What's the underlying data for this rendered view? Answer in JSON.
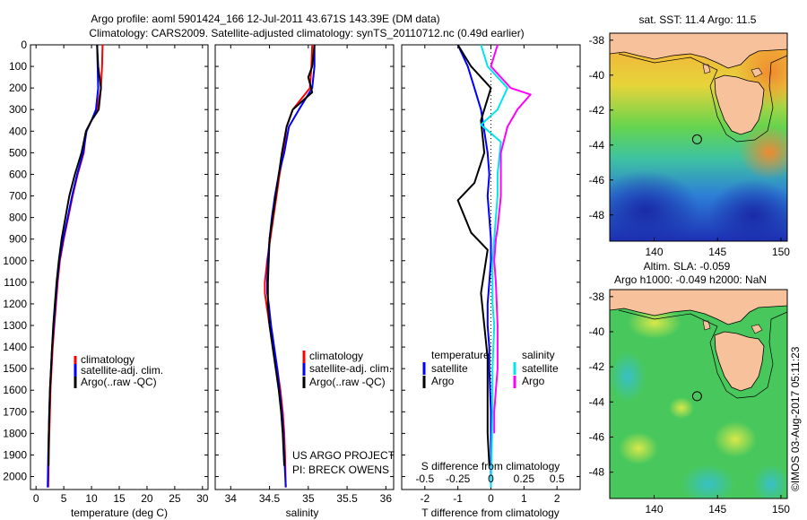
{
  "header": {
    "title_line1": "Argo profile: aoml 5901424_166 12-Jul-2011 43.671S 143.39E (DM data)",
    "title_line2": "Climatology: CARS2009. Satellite-adjusted climatology: synTS_20110712.nc (0.49d earlier)"
  },
  "credit": "©IMOS 03-Aug-2017 05:11:23",
  "colors": {
    "climatology": "#ff0000",
    "satellite": "#0000ff",
    "argo": "#000000",
    "sal_satellite": "#00e5ee",
    "sal_argo": "#ff00ff",
    "land": "#f7c29b"
  },
  "chart_data": [
    {
      "type": "line",
      "name": "temperature-profile",
      "xlabel": "temperature (deg C)",
      "ylabel": "",
      "xlim": [
        -1,
        31
      ],
      "ylim": [
        0,
        2060
      ],
      "xticks": [
        0,
        5,
        10,
        15,
        20,
        25,
        30
      ],
      "yticks": [
        0,
        100,
        200,
        300,
        400,
        500,
        600,
        700,
        800,
        900,
        1000,
        1100,
        1200,
        1300,
        1400,
        1500,
        1600,
        1700,
        1800,
        1900,
        2000
      ],
      "legend": [
        "climatology",
        "satellite-adj. clim.",
        "Argo(..raw -QC)"
      ],
      "series": [
        {
          "name": "climatology",
          "color": "#ff0000",
          "x": [
            12.0,
            11.9,
            11.7,
            11.0,
            10.0,
            9.0,
            8.6,
            7.5,
            6.6,
            5.8,
            5.0,
            4.3,
            3.9,
            3.6,
            3.3,
            3.0,
            2.8,
            2.6,
            2.5,
            2.4,
            2.3,
            2.2
          ],
          "y": [
            0,
            100,
            200,
            300,
            350,
            400,
            500,
            600,
            700,
            800,
            900,
            1000,
            1100,
            1200,
            1300,
            1400,
            1500,
            1600,
            1700,
            1800,
            1900,
            2050
          ]
        },
        {
          "name": "satellite-adj. clim.",
          "color": "#0000ff",
          "x": [
            11.0,
            11.1,
            11.2,
            10.8,
            10.0,
            9.1,
            8.5,
            7.4,
            6.5,
            5.7,
            4.9,
            4.2,
            3.8,
            3.5,
            3.2,
            2.9,
            2.7,
            2.5,
            2.4,
            2.3,
            2.2,
            2.1
          ],
          "y": [
            0,
            100,
            200,
            300,
            350,
            400,
            500,
            600,
            700,
            800,
            900,
            1000,
            1100,
            1200,
            1300,
            1400,
            1500,
            1600,
            1700,
            1800,
            1900,
            2050
          ]
        },
        {
          "name": "Argo(..raw -QC)",
          "color": "#000000",
          "x": [
            11.0,
            11.2,
            11.7,
            11.3,
            10.0,
            9.0,
            8.2,
            7.0,
            6.0,
            5.3,
            4.6,
            4.1,
            3.7,
            3.4,
            3.1,
            2.9,
            2.7,
            2.5,
            2.4,
            2.3,
            2.25
          ],
          "y": [
            0,
            100,
            200,
            300,
            350,
            400,
            500,
            600,
            700,
            800,
            900,
            1000,
            1100,
            1200,
            1300,
            1400,
            1500,
            1600,
            1700,
            1800,
            1950
          ]
        }
      ]
    },
    {
      "type": "line",
      "name": "salinity-profile",
      "xlabel": "salinity",
      "ylabel": "",
      "xlim": [
        33.8,
        36.1
      ],
      "ylim": [
        0,
        2060
      ],
      "xticks": [
        34,
        34.5,
        35,
        35.5,
        36
      ],
      "legend": [
        "climatology",
        "satellite-adj. clim.",
        "Argo(..raw -QC)"
      ],
      "annotations": [
        "US ARGO PROJECT",
        "PI: BRECK OWENS"
      ],
      "series": [
        {
          "name": "climatology",
          "color": "#ff0000",
          "x": [
            35.05,
            35.04,
            35.02,
            34.8,
            34.72,
            34.68,
            34.63,
            34.59,
            34.55,
            34.51,
            34.47,
            34.44,
            34.44,
            34.46,
            34.5,
            34.55,
            34.6,
            34.64,
            34.67,
            34.69,
            34.7,
            34.71
          ],
          "y": [
            0,
            100,
            200,
            300,
            380,
            500,
            600,
            700,
            800,
            900,
            1000,
            1100,
            1150,
            1200,
            1300,
            1400,
            1500,
            1600,
            1700,
            1800,
            1900,
            2050
          ]
        },
        {
          "name": "satellite-adj. clim.",
          "color": "#0000ff",
          "x": [
            35.08,
            35.08,
            35.05,
            34.88,
            34.75,
            34.69,
            34.62,
            34.57,
            34.53,
            34.5,
            34.48,
            34.47,
            34.47,
            34.49,
            34.52,
            34.56,
            34.6,
            34.63,
            34.66,
            34.68,
            34.69,
            34.71
          ],
          "y": [
            0,
            100,
            200,
            300,
            380,
            500,
            600,
            700,
            800,
            900,
            1000,
            1100,
            1150,
            1200,
            1300,
            1400,
            1500,
            1600,
            1700,
            1800,
            1900,
            2050
          ]
        },
        {
          "name": "Argo(..raw -QC)",
          "color": "#000000",
          "x": [
            35.08,
            35.05,
            35.0,
            35.05,
            34.8,
            34.72,
            34.66,
            34.62,
            34.58,
            34.54,
            34.5,
            34.49,
            34.48,
            34.48,
            34.5,
            34.54,
            34.58,
            34.62,
            34.65,
            34.67,
            34.69
          ],
          "y": [
            0,
            100,
            150,
            220,
            300,
            380,
            500,
            600,
            700,
            800,
            900,
            1000,
            1100,
            1200,
            1300,
            1400,
            1500,
            1600,
            1700,
            1800,
            1950
          ]
        }
      ]
    },
    {
      "type": "line",
      "name": "difference-profile",
      "xlabel": "T difference from climatology",
      "xlabel_top": "S difference from climatology",
      "xlim": [
        -2.7,
        2.7
      ],
      "ylim": [
        0,
        2060
      ],
      "xticks": [
        -2,
        -1,
        0,
        1,
        2
      ],
      "xticks_s": [
        "-0.5",
        "-0.25",
        "0",
        "0.25",
        "0.5"
      ],
      "xticks_s_pos": [
        -2,
        -1,
        0,
        1,
        2
      ],
      "legend_temperature": {
        "title": "temperature",
        "items": [
          "satellite",
          "Argo"
        ]
      },
      "legend_salinity": {
        "title": "salinity",
        "items": [
          "satellite",
          "Argo"
        ]
      },
      "series": [
        {
          "name": "satellite",
          "group": "temperature",
          "color": "#0000ff",
          "x": [
            -1.0,
            -0.7,
            -0.5,
            -0.3,
            -0.2,
            -0.1,
            -0.05,
            -0.1,
            -0.05,
            0,
            0,
            -0.05,
            -0.1,
            -0.1,
            -0.05,
            -0.05,
            0,
            0
          ],
          "y": [
            0,
            100,
            200,
            300,
            400,
            500,
            600,
            700,
            800,
            900,
            1000,
            1100,
            1200,
            1300,
            1400,
            1500,
            1700,
            2050
          ]
        },
        {
          "name": "Argo",
          "group": "temperature",
          "color": "#000000",
          "x": [
            -1.0,
            -0.6,
            0.0,
            -0.2,
            -0.3,
            -0.2,
            -0.5,
            -1.0,
            -0.6,
            -0.1,
            -0.2,
            -0.3,
            -0.2,
            -0.1,
            -0.1,
            -0.1,
            -0.05
          ],
          "y": [
            0,
            100,
            200,
            300,
            350,
            500,
            640,
            720,
            870,
            950,
            1050,
            1150,
            1300,
            1450,
            1600,
            1800,
            1950
          ]
        },
        {
          "name": "satellite",
          "group": "salinity",
          "color": "#00e5ee",
          "x": [
            -0.3,
            -0.1,
            0.5,
            0.2,
            -0.3,
            0.3,
            0.2,
            0.2,
            0.15,
            0.1,
            0.05,
            0.05,
            0.05,
            0.1,
            0.05,
            0.05,
            0.0
          ],
          "y": [
            0,
            100,
            200,
            300,
            370,
            450,
            600,
            700,
            800,
            900,
            1000,
            1100,
            1200,
            1300,
            1500,
            1700,
            2050
          ]
        },
        {
          "name": "Argo",
          "group": "salinity",
          "color": "#ff00ff",
          "x": [
            0.2,
            0.0,
            0.6,
            1.2,
            0.8,
            0.5,
            0.3,
            0.3,
            0.2,
            0.15,
            0.1,
            0.15,
            0.2,
            0.2,
            0.15,
            0.1,
            0.1
          ],
          "y": [
            0,
            100,
            200,
            230,
            300,
            380,
            500,
            700,
            850,
            900,
            1000,
            1100,
            1300,
            1500,
            1600,
            1700,
            1800
          ]
        }
      ]
    }
  ],
  "maps": [
    {
      "name": "sst-map",
      "title": "sat. SST: 11.4  Argo: 11.5",
      "lon_range": [
        136.5,
        150.5
      ],
      "lat_range": [
        -49.5,
        -37.6
      ],
      "xticks": [
        "140",
        "145",
        "150"
      ],
      "yticks": [
        "-38",
        "-40",
        "-42",
        "-44",
        "-46",
        "-48"
      ],
      "marker": {
        "lon": 143.39,
        "lat": -43.671
      }
    },
    {
      "name": "sla-map",
      "title_line1": "Altim. SLA: -0.059",
      "title_line2": "Argo h1000: -0.049 h2000: NaN",
      "lon_range": [
        136.5,
        150.5
      ],
      "lat_range": [
        -49.5,
        -37.6
      ],
      "xticks": [
        "140",
        "145",
        "150"
      ],
      "yticks": [
        "-38",
        "-40",
        "-42",
        "-44",
        "-46",
        "-48"
      ],
      "marker": {
        "lon": 143.39,
        "lat": -43.671
      }
    }
  ]
}
